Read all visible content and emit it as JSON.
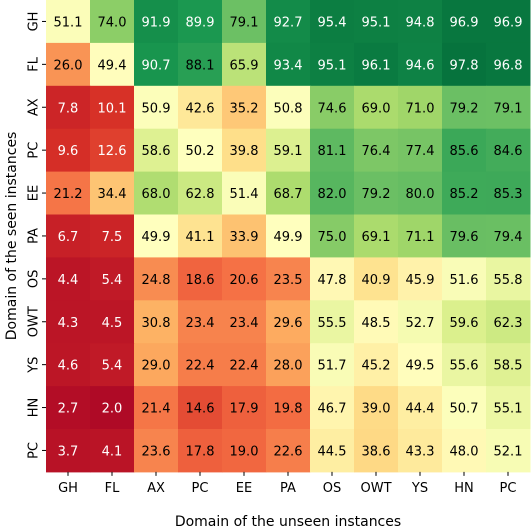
{
  "chart_data": {
    "type": "heatmap",
    "title": "",
    "xlabel": "Domain of the unseen instances",
    "ylabel": "Domain of the seen instances",
    "x_categories": [
      "GH",
      "FL",
      "AX",
      "PC",
      "EE",
      "PA",
      "OS",
      "OWT",
      "YS",
      "HN",
      "PC"
    ],
    "y_categories": [
      "GH",
      "FL",
      "AX",
      "PC",
      "EE",
      "PA",
      "OS",
      "OWT",
      "YS",
      "HN",
      "PC"
    ],
    "values": [
      [
        51.1,
        74.0,
        91.9,
        89.9,
        79.1,
        92.7,
        95.4,
        95.1,
        94.8,
        96.9,
        96.9
      ],
      [
        26.0,
        49.4,
        90.7,
        88.1,
        65.9,
        93.4,
        95.1,
        96.1,
        94.6,
        97.8,
        96.8
      ],
      [
        7.8,
        10.1,
        50.9,
        42.6,
        35.2,
        50.8,
        74.6,
        69.0,
        71.0,
        79.2,
        79.1
      ],
      [
        9.6,
        12.6,
        58.6,
        50.2,
        39.8,
        59.1,
        81.1,
        76.4,
        77.4,
        85.6,
        84.6
      ],
      [
        21.2,
        34.4,
        68.0,
        62.8,
        51.4,
        68.7,
        82.0,
        79.2,
        80.0,
        85.2,
        85.3
      ],
      [
        6.7,
        7.5,
        49.9,
        41.1,
        33.9,
        49.9,
        75.0,
        69.1,
        71.1,
        79.6,
        79.4
      ],
      [
        4.4,
        5.4,
        24.8,
        18.6,
        20.6,
        23.5,
        47.8,
        40.9,
        45.9,
        51.6,
        55.8
      ],
      [
        4.3,
        4.5,
        30.8,
        23.4,
        23.4,
        29.6,
        55.5,
        48.5,
        52.7,
        59.6,
        62.3
      ],
      [
        4.6,
        5.4,
        29.0,
        22.4,
        22.4,
        28.0,
        51.7,
        45.2,
        49.5,
        55.6,
        58.5
      ],
      [
        2.7,
        2.0,
        21.4,
        14.6,
        17.9,
        19.8,
        46.7,
        39.0,
        44.4,
        50.7,
        55.1
      ],
      [
        3.7,
        4.1,
        23.6,
        17.8,
        19.0,
        22.6,
        44.5,
        38.6,
        43.3,
        48.0,
        52.1
      ]
    ],
    "value_range": [
      0,
      100
    ],
    "colormap": "RdYlGn",
    "grid": false,
    "legend": "none"
  }
}
